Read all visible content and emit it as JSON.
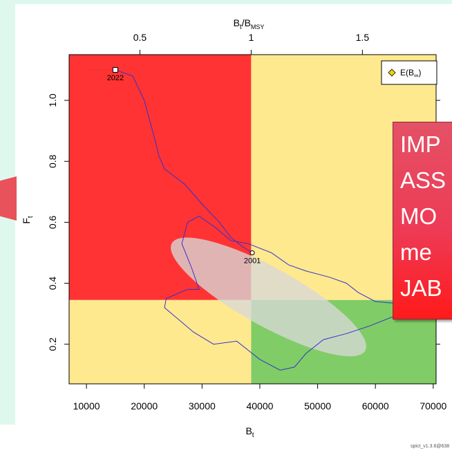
{
  "chart_data": {
    "type": "scatter",
    "title": "",
    "xlabel": "B",
    "xlabel_sub": "t",
    "ylabel": "F",
    "ylabel_sub": "t",
    "top_axis_label": {
      "num": "B",
      "num_sub": "t",
      "sep": "/",
      "den": "B",
      "den_sub": "MSY"
    },
    "xlim": [
      7000,
      70500
    ],
    "ylim": [
      0.07,
      1.15
    ],
    "x_ticks": [
      10000,
      20000,
      30000,
      40000,
      50000,
      60000,
      70000
    ],
    "x_tick_labels": [
      "10000",
      "20000",
      "30000",
      "40000",
      "50000",
      "60000",
      "70000"
    ],
    "y_ticks": [
      0.2,
      0.4,
      0.6,
      0.8,
      1.0
    ],
    "y_tick_labels": [
      "0.2",
      "0.4",
      "0.6",
      "0.8",
      "1.0"
    ],
    "top_ticks": [
      0.5,
      1.0,
      1.5
    ],
    "top_tick_labels": [
      "0.5",
      "1",
      "1.5"
    ],
    "Bmsy": 38500,
    "Fmsy": 0.345,
    "zone_colors": {
      "red": "#ff3333",
      "yellow": "#ffe98f",
      "green": "#80cc66"
    },
    "grid": false,
    "legend": {
      "position": "top-right",
      "entry": "E(B",
      "entry_sub": "∞",
      "entry_close": ")",
      "symbol_color": "#f2d000"
    },
    "trajectory_color": "#3333cc",
    "trajectory": [
      [
        15000,
        1.1
      ],
      [
        18000,
        1.08
      ],
      [
        20000,
        1.0
      ],
      [
        21000,
        0.93
      ],
      [
        22000,
        0.86
      ],
      [
        22500,
        0.82
      ],
      [
        23500,
        0.775
      ],
      [
        27000,
        0.725
      ],
      [
        30000,
        0.66
      ],
      [
        33000,
        0.6
      ],
      [
        35000,
        0.55
      ],
      [
        37000,
        0.52
      ],
      [
        38700,
        0.5
      ]
    ],
    "ci_contour": [
      [
        35000,
        0.54
      ],
      [
        38000,
        0.53
      ],
      [
        42000,
        0.5
      ],
      [
        45000,
        0.46
      ],
      [
        48000,
        0.44
      ],
      [
        52000,
        0.42
      ],
      [
        55000,
        0.4
      ],
      [
        57000,
        0.37
      ],
      [
        60000,
        0.34
      ],
      [
        63000,
        0.335
      ],
      [
        65000,
        0.33
      ],
      [
        63000,
        0.29
      ],
      [
        59000,
        0.26
      ],
      [
        55000,
        0.235
      ],
      [
        51000,
        0.215
      ],
      [
        48000,
        0.17
      ],
      [
        46000,
        0.125
      ],
      [
        43500,
        0.115
      ],
      [
        40000,
        0.15
      ],
      [
        36000,
        0.21
      ],
      [
        32000,
        0.2
      ],
      [
        28500,
        0.24
      ],
      [
        26000,
        0.28
      ],
      [
        23500,
        0.32
      ],
      [
        23800,
        0.35
      ],
      [
        27500,
        0.38
      ],
      [
        29500,
        0.38
      ],
      [
        28200,
        0.45
      ],
      [
        26500,
        0.53
      ],
      [
        27500,
        0.6
      ],
      [
        29500,
        0.62
      ],
      [
        32500,
        0.58
      ],
      [
        35000,
        0.54
      ]
    ],
    "ellipse": {
      "center": [
        41500,
        0.355
      ],
      "color": "#d9d9d9",
      "opacity": 0.78
    },
    "points": [
      {
        "label": "2022",
        "x": 15000,
        "y": 1.1,
        "shape": "square"
      },
      {
        "label": "2001",
        "x": 38700,
        "y": 0.5,
        "shape": "circle"
      }
    ],
    "prediction_segment": {
      "x": [
        9500,
        15000
      ],
      "y": [
        1.1,
        1.1
      ],
      "color": "#dd3333"
    }
  },
  "callout": {
    "lines": [
      "IMP",
      "ASS",
      "MO",
      "me",
      "JAB"
    ],
    "colors": {
      "top": "#e45166",
      "bottom": "#ff1a1a"
    }
  },
  "footer_note": "spict_v1.3.6@638"
}
